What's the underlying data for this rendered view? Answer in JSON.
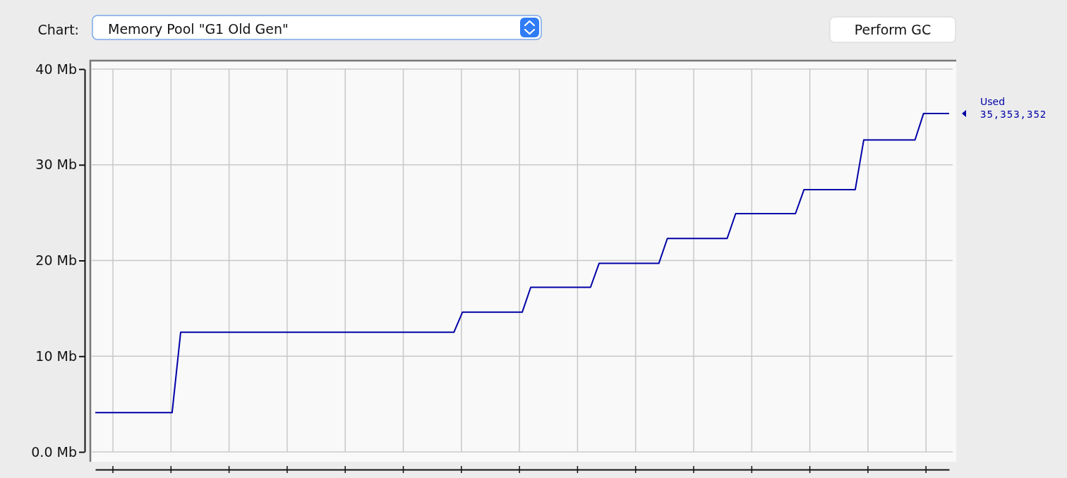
{
  "chart_data": {
    "type": "line",
    "annotations": [
      "Chart:",
      "Memory Pool \"G1 Old Gen\"",
      "Perform GC",
      "35,353,352"
    ],
    "categories": [
      null,
      null,
      null,
      null,
      null,
      null,
      null,
      null,
      null,
      null,
      null,
      null,
      null,
      null,
      null,
      null,
      null,
      null,
      null,
      null,
      null,
      null,
      null,
      null,
      null,
      null,
      null,
      null,
      null,
      null,
      null,
      null,
      null,
      null,
      null,
      null,
      null,
      null,
      null,
      null,
      null,
      null,
      null,
      null,
      null,
      null,
      null,
      null,
      null,
      null,
      null,
      null,
      null,
      null,
      null,
      null,
      null,
      null,
      null,
      null,
      null,
      null,
      null,
      null,
      null,
      null,
      null,
      null,
      null,
      null,
      null,
      null,
      null,
      null,
      null,
      null,
      null,
      null,
      null,
      null,
      null,
      null,
      null,
      null,
      null,
      null,
      null,
      null,
      null,
      null,
      null,
      null,
      null,
      null,
      null,
      null,
      null,
      null,
      null,
      null,
      null
    ],
    "series": [
      {
        "name": "Used",
        "color": "#0000a8",
        "values": [
          4.1,
          4.1,
          4.1,
          4.1,
          4.1,
          4.1,
          4.1,
          4.1,
          4.1,
          4.1,
          12.5,
          12.5,
          12.5,
          12.5,
          12.5,
          12.5,
          12.5,
          12.5,
          12.5,
          12.5,
          12.5,
          12.5,
          12.5,
          12.5,
          12.5,
          12.5,
          12.5,
          12.5,
          12.5,
          12.5,
          12.5,
          12.5,
          12.5,
          12.5,
          12.5,
          12.5,
          12.5,
          12.5,
          12.5,
          12.5,
          12.5,
          12.5,
          12.5,
          14.6,
          14.6,
          14.6,
          14.6,
          14.6,
          14.6,
          14.6,
          14.6,
          17.2,
          17.2,
          17.2,
          17.2,
          17.2,
          17.2,
          17.2,
          17.2,
          19.7,
          19.7,
          19.7,
          19.7,
          19.7,
          19.7,
          19.7,
          19.7,
          22.3,
          22.3,
          22.3,
          22.3,
          22.3,
          22.3,
          22.3,
          22.3,
          24.9,
          24.9,
          24.9,
          24.9,
          24.9,
          24.9,
          24.9,
          24.9,
          27.4,
          27.4,
          27.4,
          27.4,
          27.4,
          27.4,
          27.4,
          32.6,
          32.6,
          32.6,
          32.6,
          32.6,
          32.6,
          32.6,
          35.35,
          35.35,
          35.35,
          35.35
        ]
      }
    ],
    "ylim": [
      0,
      40
    ],
    "yticks": [
      {
        "value": 0,
        "label": "0.0 Mb"
      },
      {
        "value": 10,
        "label": "10 Mb"
      },
      {
        "value": 20,
        "label": "20 Mb"
      },
      {
        "value": 30,
        "label": "30 Mb"
      },
      {
        "value": 40,
        "label": "40 Mb"
      }
    ],
    "grid": true,
    "tick_labels": "y",
    "marker": "none",
    "line_style": "solid"
  }
}
